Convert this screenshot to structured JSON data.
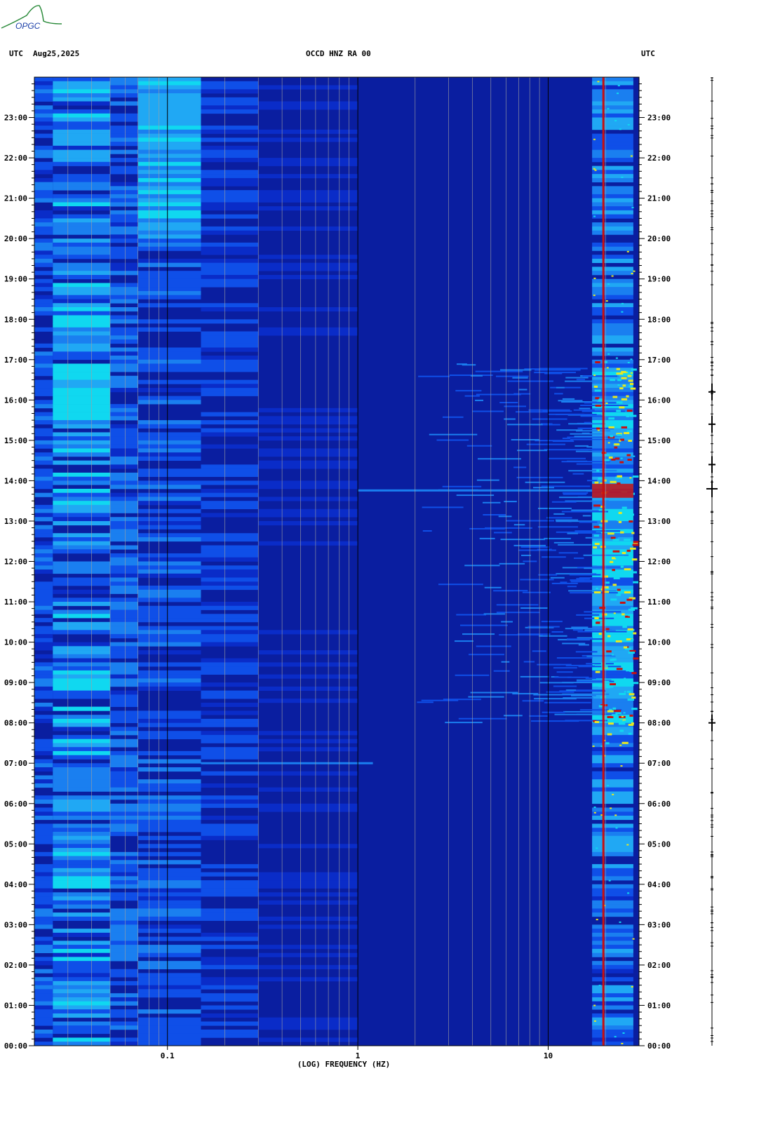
{
  "header": {
    "left_tz": "UTC",
    "date": "Aug25,2025",
    "station": "OCCD HNZ RA 00",
    "right_tz": "UTC"
  },
  "logo": {
    "text": "OPGC"
  },
  "chart_data": {
    "type": "heatmap",
    "title": "OCCD HNZ RA 00",
    "xlabel": "(LOG) FREQUENCY (HZ)",
    "ylabel": "",
    "x_scale": "log",
    "xlim": [
      0.02,
      30
    ],
    "x_ticks": [
      {
        "value": 0.1,
        "label": "0.1"
      },
      {
        "value": 1,
        "label": "1"
      },
      {
        "value": 10,
        "label": "10"
      }
    ],
    "y_ticks": [
      "00:00",
      "01:00",
      "02:00",
      "03:00",
      "04:00",
      "05:00",
      "06:00",
      "07:00",
      "08:00",
      "09:00",
      "10:00",
      "11:00",
      "12:00",
      "13:00",
      "14:00",
      "15:00",
      "16:00",
      "17:00",
      "18:00",
      "19:00",
      "20:00",
      "21:00",
      "22:00",
      "23:00"
    ],
    "ylim_hours": [
      0,
      24
    ],
    "grid": true,
    "colors": {
      "background": "#0a1ea0",
      "low": "#0a2cc8",
      "mid": "#1a7ff0",
      "cyan": "#10d8f0",
      "yellow": "#e8e820",
      "red": "#c81010",
      "grid_light": "#a0a0a0",
      "grid_dark": "#000000"
    },
    "features": [
      {
        "name": "persistent tonal line",
        "freq_hz": 19.5,
        "color": "red"
      },
      {
        "name": "high-frequency band",
        "freq_range_hz": [
          17,
          28
        ]
      },
      {
        "name": "daytime noise increase",
        "time_range_h": [
          8,
          17
        ],
        "freq_range_hz": [
          3,
          28
        ]
      },
      {
        "name": "transient event",
        "time_h": 7.0,
        "freq_range_hz": [
          0.15,
          1.2
        ]
      },
      {
        "name": "strong event",
        "time_h": 13.75,
        "freq_range_hz": [
          1,
          28
        ]
      },
      {
        "name": "microseism band",
        "freq_range_hz": [
          0.025,
          0.15
        ]
      }
    ]
  },
  "trace": {
    "events_h": [
      8.0,
      13.8,
      14.4,
      15.4,
      16.2
    ]
  }
}
